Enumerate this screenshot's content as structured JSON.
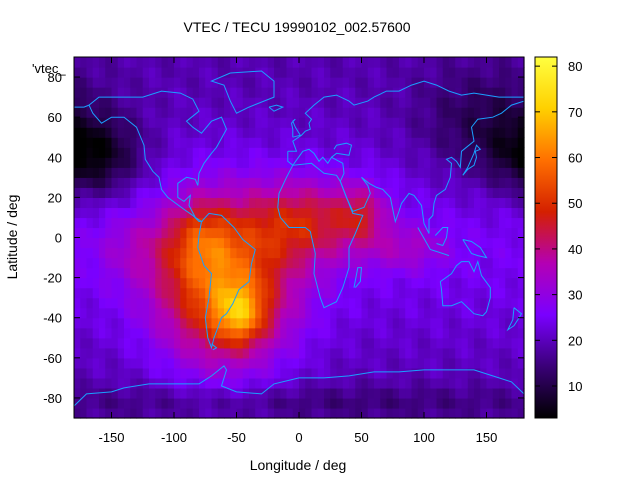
{
  "chart_data": {
    "type": "heatmap",
    "title": "VTEC / TECU 19990102_002.57600",
    "xlabel": "Longitude / deg",
    "ylabel": "Latitude / deg",
    "series_label": "'vtec_",
    "xlim": [
      -180,
      180
    ],
    "ylim": [
      -90,
      90
    ],
    "xticks": [
      -150,
      -100,
      -50,
      0,
      50,
      100,
      150
    ],
    "yticks": [
      -80,
      -60,
      -40,
      -20,
      0,
      20,
      40,
      60,
      80
    ],
    "x_tick_labels": [
      "-150",
      "-100",
      "-50",
      "0",
      "50",
      "100",
      "150"
    ],
    "y_tick_labels": [
      "-80",
      "-60",
      "-40",
      "-20",
      "0",
      "20",
      "40",
      "60",
      "80"
    ],
    "colorbar": {
      "range": [
        3,
        82
      ],
      "ticks": [
        10,
        20,
        30,
        40,
        50,
        60,
        70,
        80
      ],
      "tick_labels": [
        "10",
        "20",
        "30",
        "40",
        "50",
        "60",
        "70",
        "80"
      ],
      "palette": [
        "#000000",
        "#3a0077",
        "#7a00ff",
        "#b400b4",
        "#d42000",
        "#ff7000",
        "#ffd000",
        "#ffff40"
      ]
    },
    "grid_step_deg": 5,
    "background_value": 22,
    "features": [
      {
        "name": "south-america-peak",
        "lon": -60,
        "lat": -25,
        "sigma_lon": 38,
        "sigma_lat": 28,
        "amp": 34
      },
      {
        "name": "south-atlantic-high",
        "lon": -48,
        "lat": -38,
        "sigma_lon": 14,
        "sigma_lat": 10,
        "amp": 20
      },
      {
        "name": "brazil-equatorial-high",
        "lon": -78,
        "lat": 0,
        "sigma_lon": 18,
        "sigma_lat": 14,
        "amp": 12
      },
      {
        "name": "africa-band",
        "lon": 5,
        "lat": 8,
        "sigma_lon": 32,
        "sigma_lat": 14,
        "amp": 20
      },
      {
        "name": "arabia-band",
        "lon": 50,
        "lat": 12,
        "sigma_lon": 14,
        "sigma_lat": 10,
        "amp": 14
      },
      {
        "name": "indian-ocean-band",
        "lon": 85,
        "lat": -5,
        "sigma_lon": 24,
        "sigma_lat": 8,
        "amp": 9
      },
      {
        "name": "south-pacific-band",
        "lon": -130,
        "lat": -5,
        "sigma_lon": 24,
        "sigma_lat": 12,
        "amp": 6
      },
      {
        "name": "north-polar-low",
        "lon": -165,
        "lat": 40,
        "sigma_lon": 28,
        "sigma_lat": 14,
        "amp": -16
      },
      {
        "name": "asia-polar-low",
        "lon": 150,
        "lat": 55,
        "sigma_lon": 40,
        "sigma_lat": 20,
        "amp": -10
      },
      {
        "name": "south-polar-low",
        "lon": 0,
        "lat": -82,
        "sigma_lon": 180,
        "sigma_lat": 6,
        "amp": -5
      }
    ],
    "line_color": "#1aa0ff",
    "coastline_overlay": "world coastlines (approximate)"
  }
}
